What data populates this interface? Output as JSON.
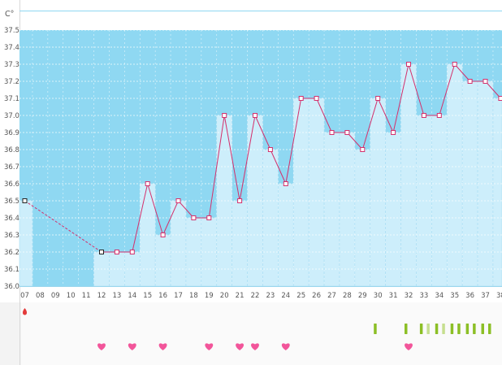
{
  "chart_data": {
    "type": "line",
    "unit_label": "C°",
    "ylim": [
      36.0,
      37.5
    ],
    "y_ticks": [
      "36.0",
      "36.1",
      "36.2",
      "36.3",
      "36.4",
      "36.5",
      "36.6",
      "36.7",
      "36.8",
      "36.9",
      "37.0",
      "37.1",
      "37.2",
      "37.3",
      "37.4",
      "37.5"
    ],
    "x_labels": [
      "07",
      "08",
      "09",
      "10",
      "11",
      "12",
      "13",
      "14",
      "15",
      "16",
      "17",
      "18",
      "19",
      "20",
      "21",
      "22",
      "23",
      "24",
      "25",
      "26",
      "27",
      "28",
      "29",
      "30",
      "31",
      "32",
      "33",
      "34",
      "35",
      "36",
      "37",
      "38"
    ],
    "series": [
      {
        "values": [
          36.5,
          null,
          null,
          null,
          null,
          36.2,
          36.2,
          36.2,
          36.6,
          36.3,
          36.5,
          36.4,
          36.4,
          37.0,
          36.5,
          37.0,
          36.8,
          36.6,
          37.1,
          37.1,
          36.9,
          36.9,
          36.8,
          37.1,
          36.9,
          37.3,
          37.0,
          37.0,
          37.3,
          37.2,
          37.2,
          37.1
        ]
      }
    ],
    "estimated_days": [
      "07",
      "12"
    ],
    "grid": true
  },
  "markers": {
    "period_days": [
      "07"
    ],
    "heart_days": [
      "12",
      "14",
      "16",
      "19",
      "21",
      "22",
      "24",
      "32"
    ],
    "green_bars": [
      {
        "day": "30",
        "shade": "dark"
      },
      {
        "day": "32",
        "shade": "dark"
      },
      {
        "day": "33",
        "shade": "dark"
      },
      {
        "day": "33",
        "shade": "light"
      },
      {
        "day": "34",
        "shade": "dark"
      },
      {
        "day": "34",
        "shade": "light"
      },
      {
        "day": "35",
        "shade": "dark"
      },
      {
        "day": "35",
        "shade": "dark"
      },
      {
        "day": "36",
        "shade": "dark"
      },
      {
        "day": "36",
        "shade": "dark"
      },
      {
        "day": "37",
        "shade": "dark"
      },
      {
        "day": "37",
        "shade": "dark"
      }
    ]
  },
  "colors": {
    "band": "#8fd8f2",
    "bar_fill": "#cdeefb",
    "bar_edge": "#a9def4",
    "line": "#d4306c",
    "marker_border": "#d4306c",
    "estimate_marker_border": "#222222",
    "heart": "#f2559a",
    "period": "#e33b3b",
    "green_dark": "#8cbf26",
    "green_light": "#c6df8f",
    "axis_text": "#555555"
  }
}
